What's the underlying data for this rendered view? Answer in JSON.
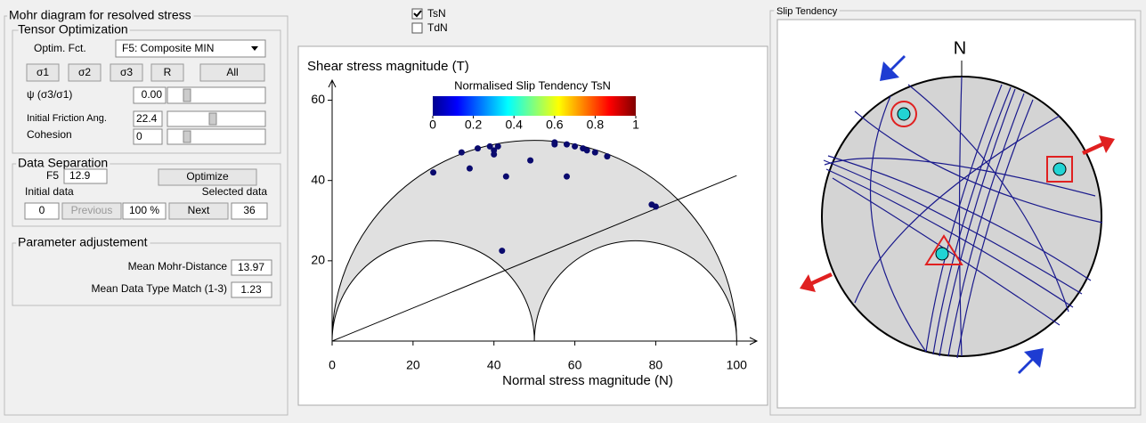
{
  "left_panel": {
    "title": "Mohr diagram for resolved stress",
    "tensor_optimization": {
      "title": "Tensor Optimization",
      "optim_label": "Optim. Fct.",
      "optim_value": "F5: Composite MIN",
      "buttons": [
        "σ1",
        "σ2",
        "σ3",
        "R",
        "All"
      ],
      "psi_label": "ψ (σ3/σ1)",
      "psi_value": "0.00",
      "friction_label": "Initial Friction Ang.",
      "friction_value": 22.4,
      "cohesion_label": "Cohesion",
      "cohesion_value": "0"
    },
    "data_separation": {
      "title": "Data Separation",
      "f5_label": "F5",
      "f5_value": "12.9",
      "optimize": "Optimize",
      "initial_label": "Initial data",
      "selected_label": "Selected data",
      "initial_value": "0",
      "previous": "Previous",
      "percent": "100 %",
      "next": "Next",
      "selected_value": "36"
    },
    "parameter_adjustment": {
      "title": "Parameter adjustement",
      "mean_mohr_label": "Mean Mohr-Distance",
      "mean_mohr_value": "13.97",
      "mean_type_label": "Mean Data Type Match (1-3)",
      "mean_type_value": "1.23"
    }
  },
  "checkboxes": [
    {
      "label": "TsN",
      "checked": true
    },
    {
      "label": "TdN",
      "checked": false
    }
  ],
  "mohr": {
    "type": "scatter",
    "y_label": "Shear stress magnitude (T)",
    "x_label": "Normal stress magnitude (N)",
    "xlim": [
      0,
      105
    ],
    "ylim": [
      0,
      65
    ],
    "xticks": [
      0,
      20,
      40,
      60,
      80,
      100
    ],
    "yticks": [
      20,
      40,
      60
    ],
    "colorbar": {
      "title": "Normalised Slip Tendency TsN",
      "ticks": [
        0,
        0.2,
        0.4,
        0.6,
        0.8,
        1
      ]
    },
    "points": {
      "color": "#0a0a6e",
      "x": [
        25,
        32,
        34,
        36,
        39,
        40,
        40,
        41,
        43,
        49,
        55,
        55,
        58,
        60,
        62,
        63,
        65,
        68,
        58,
        79,
        80,
        42
      ],
      "y": [
        42,
        47,
        43,
        48,
        48.5,
        47.5,
        46.5,
        48.5,
        41,
        45,
        49.5,
        49,
        49,
        48.5,
        48,
        47.5,
        47,
        46,
        41,
        34,
        33.5,
        22.5
      ]
    }
  },
  "stereonet": {
    "title": "Slip Tendency",
    "north": "N"
  }
}
